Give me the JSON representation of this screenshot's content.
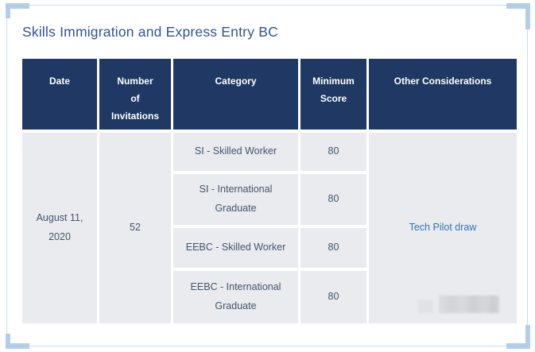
{
  "page": {
    "title": "Skills Immigration and Express Entry BC"
  },
  "table": {
    "columns": [
      {
        "label": "Date"
      },
      {
        "label": "Number\nof\nInvitations"
      },
      {
        "label": "Category"
      },
      {
        "label": "Minimum\nScore"
      },
      {
        "label": "Other Considerations"
      }
    ],
    "row_group": {
      "date": "August 11,\n2020",
      "number_of_invitations": "52",
      "draws": [
        {
          "category": "SI - Skilled Worker",
          "minimum_score": "80"
        },
        {
          "category": "SI - International\nGraduate",
          "minimum_score": "80"
        },
        {
          "category": "EEBC - Skilled Worker",
          "minimum_score": "80"
        },
        {
          "category": "EEBC - International\nGraduate",
          "minimum_score": "80"
        }
      ],
      "other_considerations": "Tech Pilot draw"
    }
  },
  "colors": {
    "header_background": "#1F3864",
    "header_text": "#FFFFFF",
    "cell_background": "#E9EBEF",
    "body_text": "#44546A",
    "title_text": "#2F5496",
    "link_text": "#2E75B6",
    "frame_line": "#C9DCEF",
    "frame_corner": "#B3CEE9"
  }
}
